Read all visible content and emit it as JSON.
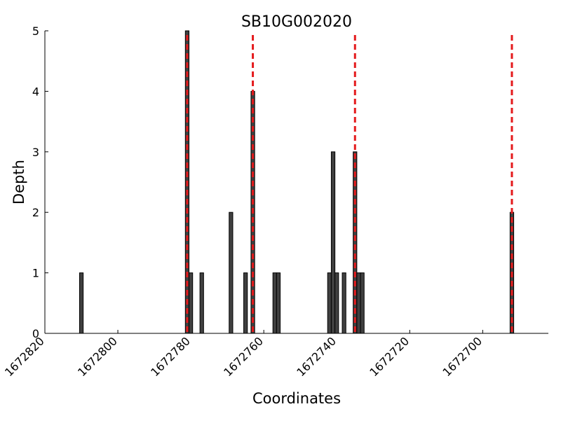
{
  "chart_data": {
    "type": "bar",
    "title": "SB10G002020",
    "xlabel": "Coordinates",
    "ylabel": "Depth",
    "x": [
      1672810,
      1672781,
      1672780,
      1672777,
      1672769,
      1672765,
      1672763,
      1672757,
      1672756,
      1672742,
      1672741,
      1672740,
      1672738,
      1672735,
      1672734,
      1672733,
      1672692
    ],
    "values": [
      1,
      5,
      1,
      1,
      2,
      1,
      4,
      1,
      1,
      1,
      3,
      1,
      1,
      3,
      1,
      1,
      2
    ],
    "color": "#404040",
    "vlines": [
      1672781,
      1672763,
      1672735,
      1672692
    ],
    "vline_color": "#e41a1c",
    "xlim": [
      1672820,
      1672682
    ],
    "xticks": [
      1672820,
      1672800,
      1672780,
      1672760,
      1672740,
      1672720,
      1672700
    ],
    "ylim": [
      0,
      5
    ],
    "yticks": [
      0,
      1,
      2,
      3,
      4,
      5
    ],
    "grid": false
  }
}
